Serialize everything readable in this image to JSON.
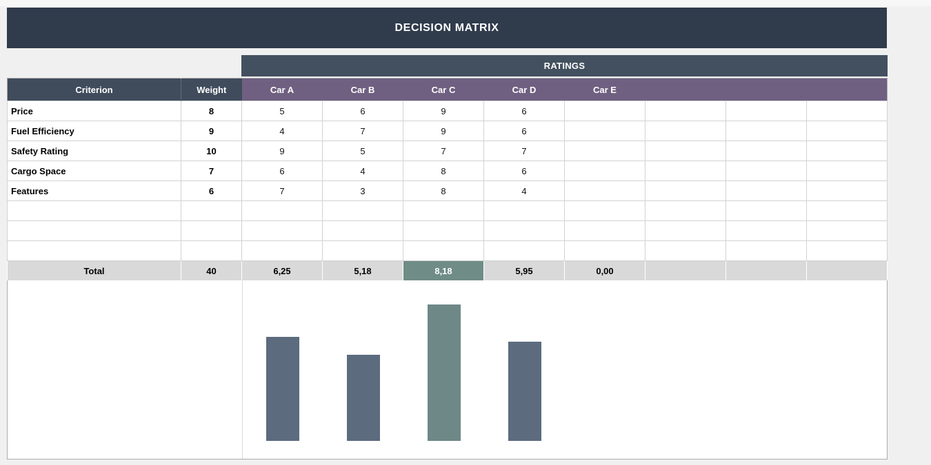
{
  "title": "DECISION MATRIX",
  "ratings_header": "RATINGS",
  "columns": {
    "criterion": "Criterion",
    "weight": "Weight",
    "cars": [
      "Car A",
      "Car B",
      "Car C",
      "Car D",
      "Car E"
    ],
    "extra_blank_columns": 3
  },
  "rows": [
    {
      "criterion": "Price",
      "weight": "8",
      "ratings": [
        "5",
        "6",
        "9",
        "6",
        ""
      ]
    },
    {
      "criterion": "Fuel Efficiency",
      "weight": "9",
      "ratings": [
        "4",
        "7",
        "9",
        "6",
        ""
      ]
    },
    {
      "criterion": "Safety Rating",
      "weight": "10",
      "ratings": [
        "9",
        "5",
        "7",
        "7",
        ""
      ]
    },
    {
      "criterion": "Cargo Space",
      "weight": "7",
      "ratings": [
        "6",
        "4",
        "8",
        "6",
        ""
      ]
    },
    {
      "criterion": "Features",
      "weight": "6",
      "ratings": [
        "7",
        "3",
        "8",
        "4",
        ""
      ]
    }
  ],
  "empty_row_count": 3,
  "total": {
    "label": "Total",
    "weight": "40",
    "values": [
      "6,25",
      "5,18",
      "8,18",
      "5,95",
      "0,00"
    ],
    "highlight_index": 2
  },
  "colors": {
    "page_bg": "#F0F0F0",
    "title_bar": "#303B4C",
    "ratings_band": "#43505F",
    "header_slate": "#404C5C",
    "header_purple": "#6F6081",
    "total_bg": "#D9D9D9",
    "highlight_teal": "#6F8C87",
    "bar_slate": "#5C6B7E",
    "bar_teal": "#6E8787",
    "cell_border": "#D2D2D2",
    "outer_border": "#ABABAB"
  },
  "chart_data": {
    "type": "bar",
    "categories": [
      "Car A",
      "Car B",
      "Car C",
      "Car D",
      "Car E"
    ],
    "values": [
      6.25,
      5.18,
      8.18,
      5.95,
      0
    ],
    "title": "",
    "xlabel": "",
    "ylabel": "",
    "ylim": [
      0,
      10
    ],
    "grid": false,
    "legend": false,
    "axes_hidden": true,
    "highlight_index": 2,
    "bar_color": "#5C6B7E",
    "highlight_color": "#6E8787"
  }
}
